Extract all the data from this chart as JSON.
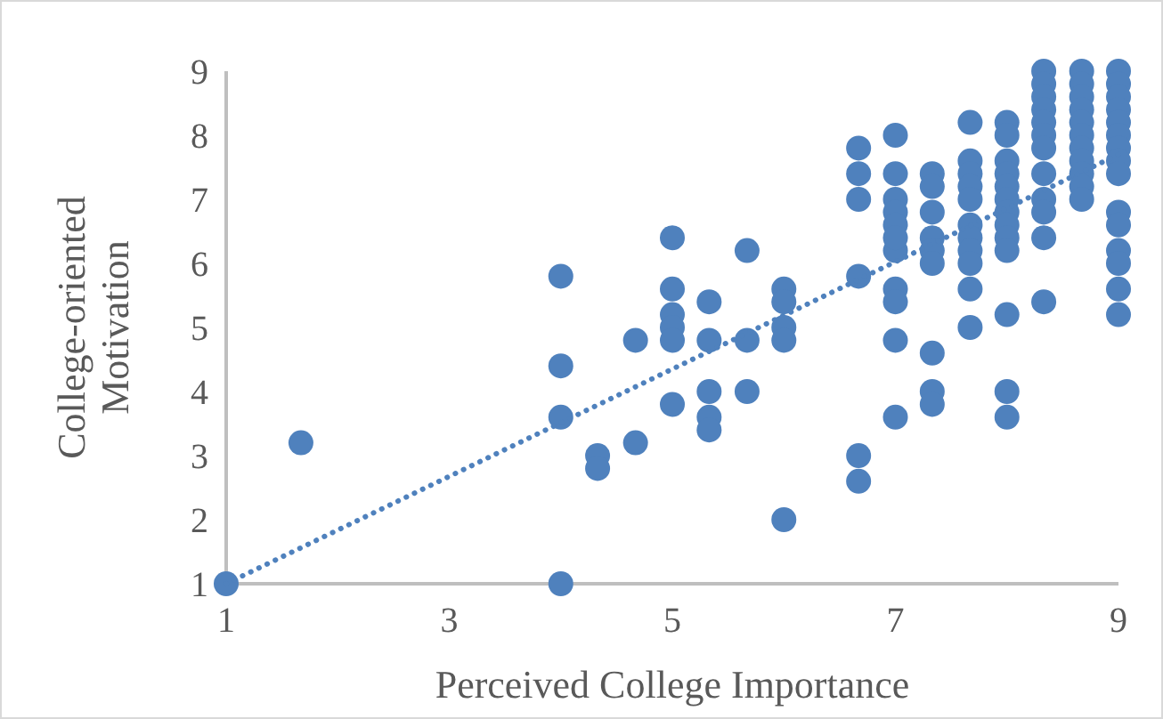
{
  "chart_data": {
    "type": "scatter",
    "xlabel": "Perceived College Importance",
    "ylabel": "College-oriented Motivation",
    "xlim": [
      1,
      9
    ],
    "ylim": [
      1,
      9
    ],
    "xticks": [
      1,
      3,
      5,
      7,
      9
    ],
    "yticks": [
      1,
      2,
      3,
      4,
      5,
      6,
      7,
      8,
      9
    ],
    "grid": false,
    "marker": "circle",
    "series": [
      {
        "color": "#4f81bd",
        "x": [
          1,
          1.67,
          4,
          4,
          4,
          4,
          4.33,
          4.33,
          4.67,
          4.67,
          5,
          5,
          5,
          5,
          5,
          5,
          5.33,
          5.33,
          5.33,
          5.33,
          5.33,
          5.67,
          5.67,
          5.67,
          6,
          6,
          6,
          6,
          6,
          6.67,
          6.67,
          6.67,
          6.67,
          6.67,
          6.67,
          7,
          7,
          7,
          7,
          7,
          7,
          7,
          7,
          7,
          7,
          7,
          7.33,
          7.33,
          7.33,
          7.33,
          7.33,
          7.33,
          7.33,
          7.33,
          7.33,
          7.67,
          7.67,
          7.67,
          7.67,
          7.67,
          7.67,
          7.67,
          7.67,
          7.67,
          7.67,
          7.67,
          8,
          8,
          8,
          8,
          8,
          8,
          8,
          8,
          8,
          8,
          8,
          8,
          8,
          8.33,
          8.33,
          8.33,
          8.33,
          8.33,
          8.33,
          8.33,
          8.33,
          8.33,
          8.33,
          8.33,
          8.33,
          8.67,
          8.67,
          8.67,
          8.67,
          8.67,
          8.67,
          8.67,
          8.67,
          8.67,
          8.67,
          8.67,
          9,
          9,
          9,
          9,
          9,
          9,
          9,
          9,
          9,
          9,
          9,
          9,
          9,
          9,
          9
        ],
        "values": [
          1,
          3.2,
          5.8,
          4.4,
          3.6,
          1,
          3,
          2.8,
          4.8,
          3.2,
          6.4,
          5.6,
          5.2,
          5,
          4.8,
          3.8,
          5.4,
          4.8,
          4,
          3.6,
          3.4,
          6.2,
          4.8,
          4,
          5.6,
          5.4,
          5,
          4.8,
          2,
          7.8,
          7.4,
          7,
          5.8,
          3,
          2.6,
          8,
          7.4,
          7,
          6.8,
          6.6,
          6.2,
          5.6,
          5.4,
          4.8,
          3.6,
          6.4,
          7.4,
          7.2,
          6.8,
          6.4,
          6.2,
          6,
          4.6,
          4,
          3.8,
          8.2,
          7.6,
          7.4,
          7.2,
          7,
          6.6,
          6.4,
          6.2,
          6,
          5.6,
          5,
          8.2,
          8,
          7.6,
          7.4,
          7.2,
          7,
          6.8,
          6.6,
          6.4,
          6.2,
          5.2,
          4,
          3.6,
          9,
          8.8,
          8.6,
          8.4,
          8.2,
          8,
          7.8,
          7.4,
          7,
          6.8,
          6.4,
          5.4,
          9,
          8.8,
          8.6,
          8.4,
          8.2,
          8,
          7.8,
          7.6,
          7.4,
          7.2,
          7,
          9,
          8.8,
          8.6,
          8.4,
          8.2,
          8,
          7.8,
          7.6,
          7.4,
          6.8,
          6.6,
          6.2,
          6,
          5.6,
          5.2
        ]
      },
      {
        "type": "line",
        "color": "#4f81bd",
        "line_style": "dotted",
        "marker": "none",
        "x": [
          1,
          9
        ],
        "values": [
          1,
          7.7
        ]
      }
    ]
  }
}
